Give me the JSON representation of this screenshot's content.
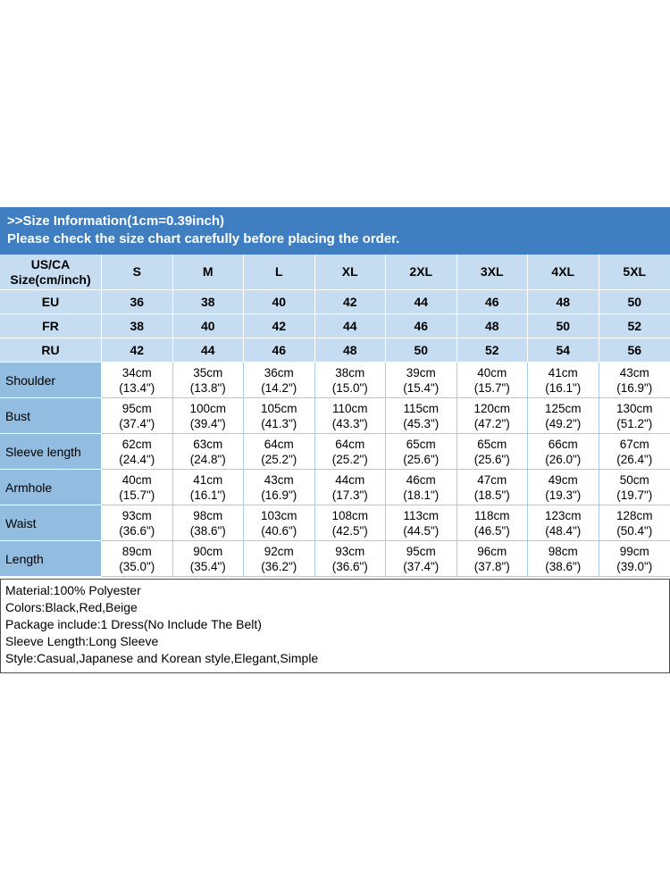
{
  "banner": {
    "title": ">>Size Information(1cm=0.39inch)",
    "subtitle": "Please check the size chart carefully before placing the order."
  },
  "colors": {
    "banner_blue": "#3E7EC1",
    "header_light_blue": "#C6DCF1",
    "label_medium_blue": "#92BCE0",
    "grid_blue": "#A9CBE9",
    "details_border": "#4D4D4D"
  },
  "table": {
    "corner_header": "US/CA\nSize(cm/inch)",
    "size_columns": [
      "S",
      "M",
      "L",
      "XL",
      "2XL",
      "3XL",
      "4XL",
      "5XL"
    ],
    "standard_rows": [
      {
        "label": "EU",
        "values": [
          "36",
          "38",
          "40",
          "42",
          "44",
          "46",
          "48",
          "50"
        ]
      },
      {
        "label": "FR",
        "values": [
          "38",
          "40",
          "42",
          "44",
          "46",
          "48",
          "50",
          "52"
        ]
      },
      {
        "label": "RU",
        "values": [
          "42",
          "44",
          "46",
          "48",
          "50",
          "52",
          "54",
          "56"
        ]
      }
    ],
    "measurement_rows": [
      {
        "label": "Shoulder",
        "values": [
          "34cm\n(13.4\")",
          "35cm\n(13.8\")",
          "36cm\n(14.2\")",
          "38cm\n(15.0\")",
          "39cm\n(15.4\")",
          "40cm\n(15.7\")",
          "41cm\n(16.1\")",
          "43cm\n(16.9\")"
        ]
      },
      {
        "label": "Bust",
        "values": [
          "95cm\n(37.4\")",
          "100cm\n(39.4\")",
          "105cm\n(41.3\")",
          "110cm\n(43.3\")",
          "115cm\n(45.3\")",
          "120cm\n(47.2\")",
          "125cm\n(49.2\")",
          "130cm\n(51.2\")"
        ]
      },
      {
        "label": "Sleeve length",
        "values": [
          "62cm\n(24.4\")",
          "63cm\n(24.8\")",
          "64cm\n(25.2\")",
          "64cm\n(25.2\")",
          "65cm\n(25.6\")",
          "65cm\n(25.6\")",
          "66cm\n(26.0\")",
          "67cm\n(26.4\")"
        ]
      },
      {
        "label": "Armhole",
        "values": [
          "40cm\n(15.7\")",
          "41cm\n(16.1\")",
          "43cm\n(16.9\")",
          "44cm\n(17.3\")",
          "46cm\n(18.1\")",
          "47cm\n(18.5\")",
          "49cm\n(19.3\")",
          "50cm\n(19.7\")"
        ]
      },
      {
        "label": "Waist",
        "values": [
          "93cm\n(36.6\")",
          "98cm\n(38.6\")",
          "103cm\n(40.6\")",
          "108cm\n(42.5\")",
          "113cm\n(44.5\")",
          "118cm\n(46.5\")",
          "123cm\n(48.4\")",
          "128cm\n(50.4\")"
        ]
      },
      {
        "label": "Length",
        "values": [
          "89cm\n(35.0\")",
          "90cm\n(35.4\")",
          "92cm\n(36.2\")",
          "93cm\n(36.6\")",
          "95cm\n(37.4\")",
          "96cm\n(37.8\")",
          "98cm\n(38.6\")",
          "99cm\n(39.0\")"
        ]
      }
    ]
  },
  "details": {
    "lines": [
      "Material:100% Polyester",
      "Colors:Black,Red,Beige",
      "Package include:1 Dress(No Include The Belt)",
      "Sleeve Length:Long Sleeve",
      "Style:Casual,Japanese and Korean style,Elegant,Simple"
    ]
  }
}
